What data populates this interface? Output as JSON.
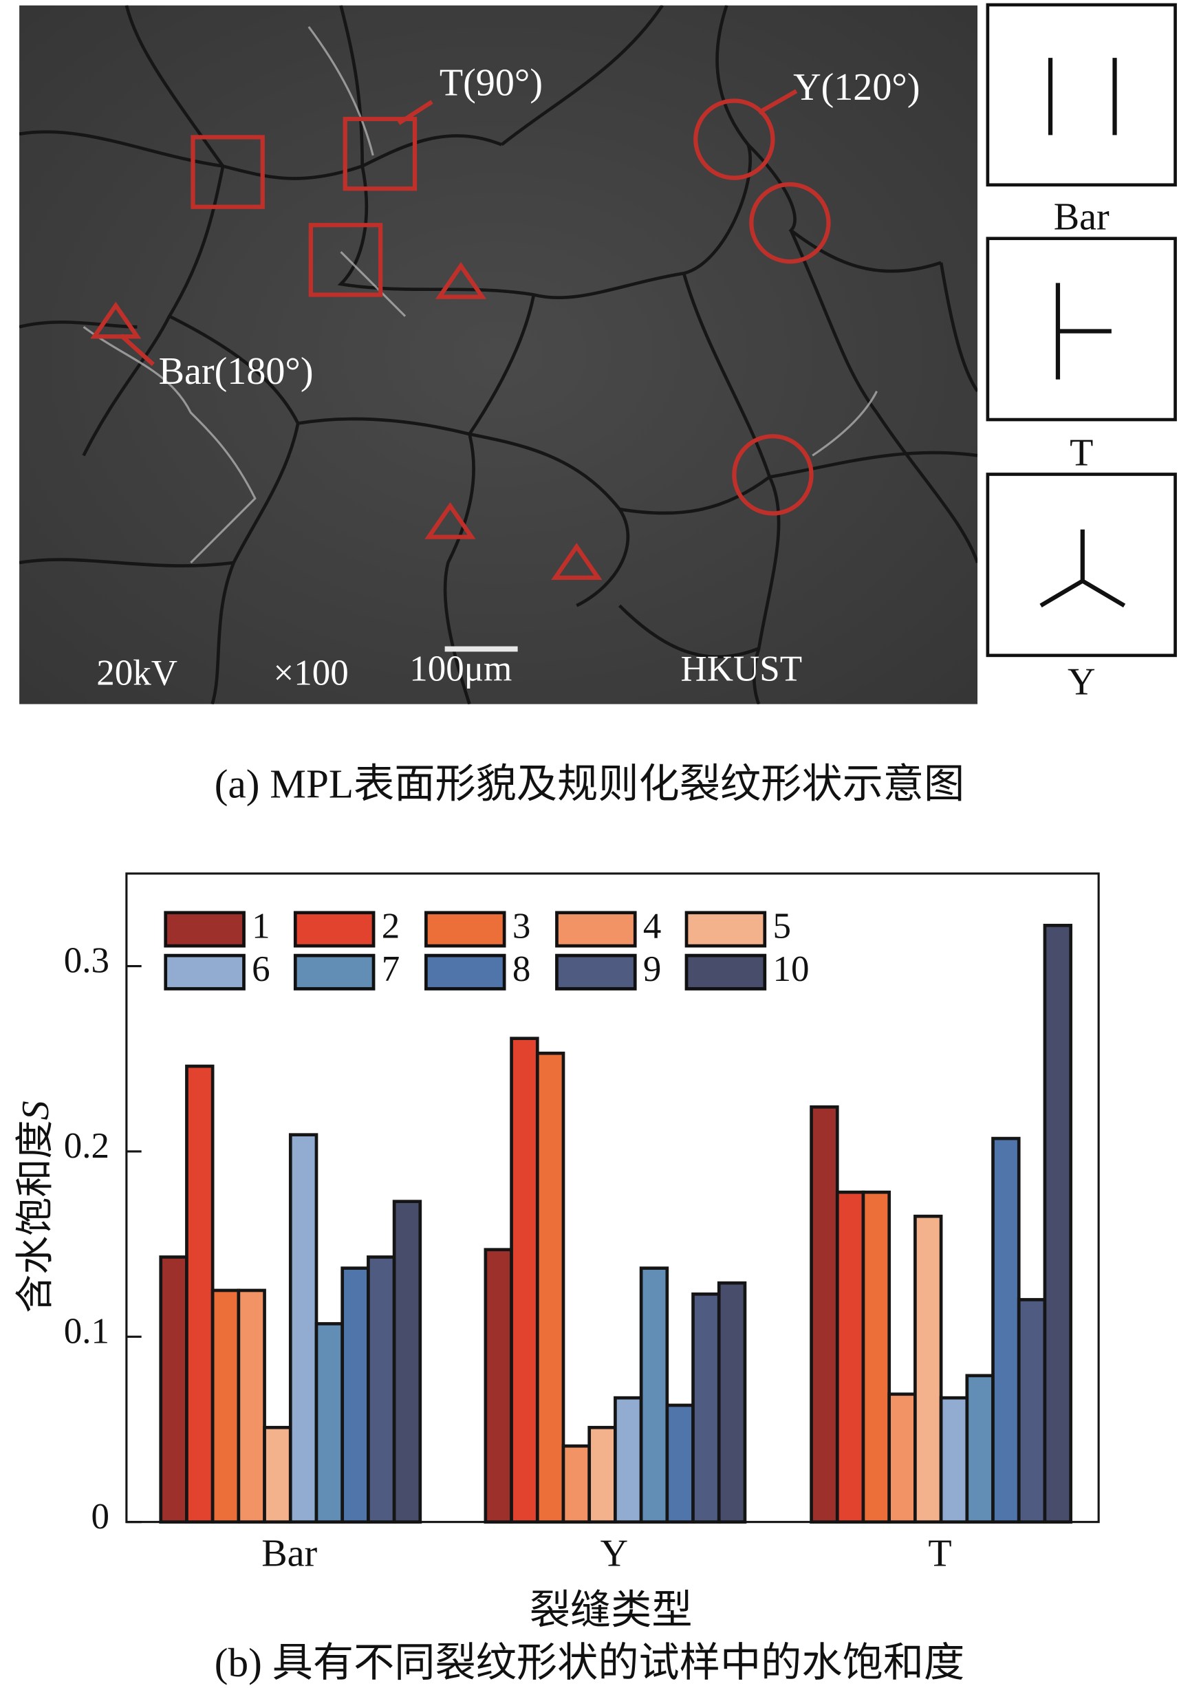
{
  "figure_a": {
    "caption": "(a) MPL表面形貌及规则化裂纹形状示意图",
    "sem_annotations": {
      "t_label": "T(90°)",
      "y_label": "Y(120°)",
      "bar_label": "Bar(180°)"
    },
    "sem_footer": {
      "voltage": "20kV",
      "magnification": "×100",
      "scale": "100μm",
      "institution": "HKUST"
    },
    "annotation_color": "#c0302a",
    "shape_schematics": [
      {
        "label": "Bar"
      },
      {
        "label": "T"
      },
      {
        "label": "Y"
      }
    ]
  },
  "figure_b": {
    "caption": "(b) 具有不同裂纹形状的试样中的水饱和度"
  },
  "chart_data": {
    "type": "bar",
    "title": "",
    "xlabel": "裂缝类型",
    "ylabel": "含水饱和度",
    "ylabel_symbol": "S",
    "ylim": [
      0,
      0.35
    ],
    "yticks": [
      0,
      0.1,
      0.2,
      0.3
    ],
    "ytick_labels": [
      "0",
      "0.1",
      "0.2",
      "0.3"
    ],
    "categories": [
      "Bar",
      "Y",
      "T"
    ],
    "grid": false,
    "legend_position": "top-left",
    "series": [
      {
        "name": "1",
        "color": "#9e302c",
        "values": [
          0.143,
          0.147,
          0.224
        ]
      },
      {
        "name": "2",
        "color": "#e2432f",
        "values": [
          0.246,
          0.261,
          0.178
        ]
      },
      {
        "name": "3",
        "color": "#ec6f39",
        "values": [
          0.125,
          0.253,
          0.178
        ]
      },
      {
        "name": "4",
        "color": "#f29366",
        "values": [
          0.125,
          0.041,
          0.069
        ]
      },
      {
        "name": "5",
        "color": "#f3b28b",
        "values": [
          0.051,
          0.051,
          0.165
        ]
      },
      {
        "name": "6",
        "color": "#91acd0",
        "values": [
          0.209,
          0.067,
          0.067
        ]
      },
      {
        "name": "7",
        "color": "#628db5",
        "values": [
          0.107,
          0.137,
          0.079
        ]
      },
      {
        "name": "8",
        "color": "#5075aa",
        "values": [
          0.137,
          0.063,
          0.207
        ]
      },
      {
        "name": "9",
        "color": "#4f5b80",
        "values": [
          0.143,
          0.123,
          0.12
        ]
      },
      {
        "name": "10",
        "color": "#484d6b",
        "values": [
          0.173,
          0.129,
          0.322
        ]
      }
    ]
  }
}
